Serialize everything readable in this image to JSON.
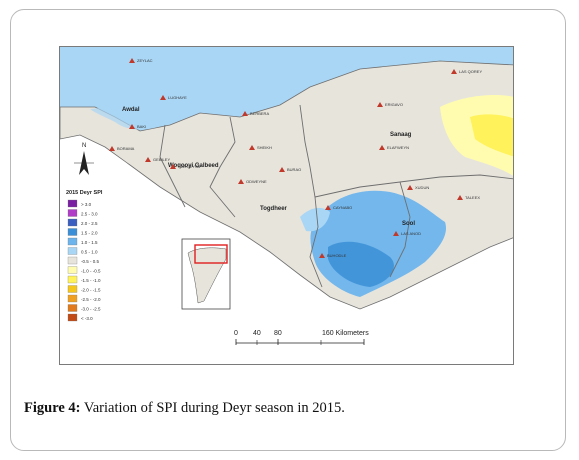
{
  "caption": {
    "figure_label": "Figure 4:",
    "text": " Variation of SPI during Deyr season in 2015."
  },
  "map": {
    "north_arrow_label": "N",
    "legend": {
      "title": "2015 Deyr SPI",
      "classes": [
        {
          "label": "> 3.0",
          "color": "#7a1fa2"
        },
        {
          "label": "2.5 - 3.0",
          "color": "#b03cc8"
        },
        {
          "label": "2.0 - 2.5",
          "color": "#3b5fc0"
        },
        {
          "label": "1.5 - 2.0",
          "color": "#3b8fd6"
        },
        {
          "label": "1.0 - 1.5",
          "color": "#6db4ec"
        },
        {
          "label": "0.5 - 1.0",
          "color": "#a9d6f5"
        },
        {
          "label": "-0.5 - 0.5",
          "color": "#e7e4dc"
        },
        {
          "label": "-1.0 - -0.5",
          "color": "#fffcb0"
        },
        {
          "label": "-1.5 - -1.0",
          "color": "#fff25a"
        },
        {
          "label": "-2.0 - -1.5",
          "color": "#f5c61c"
        },
        {
          "label": "-2.5 - -2.0",
          "color": "#f0a020"
        },
        {
          "label": "-3.0 - -2.5",
          "color": "#e07a1c"
        },
        {
          "label": "< -3.0",
          "color": "#c24a14"
        }
      ]
    },
    "regions": [
      {
        "name": "Awdal"
      },
      {
        "name": "Woqooyi Galbeed"
      },
      {
        "name": "Togdheer"
      },
      {
        "name": "Sanaag"
      },
      {
        "name": "Sool"
      }
    ],
    "towns": [
      {
        "name": "ZEYLAC"
      },
      {
        "name": "LUGHAYE"
      },
      {
        "name": "BAKI"
      },
      {
        "name": "BORAMA"
      },
      {
        "name": "BERBERA"
      },
      {
        "name": "SHEIKH"
      },
      {
        "name": "GEBILEY"
      },
      {
        "name": "HARGEYSA"
      },
      {
        "name": "ODWEYNE"
      },
      {
        "name": "BURAO"
      },
      {
        "name": "BUHODLE"
      },
      {
        "name": "LAS QOREY"
      },
      {
        "name": "ERIGAVO"
      },
      {
        "name": "ELAFWEYN"
      },
      {
        "name": "CAYNABO"
      },
      {
        "name": "XUDUN"
      },
      {
        "name": "TALEEX"
      },
      {
        "name": "LAS ANOD"
      }
    ],
    "scale_bar": {
      "ticks": [
        "0",
        "40",
        "80",
        "160 Kilometers"
      ]
    },
    "colors": {
      "land": "#e7e4dc",
      "sea": "#a9d6f5",
      "boundary": "#6e6e6e",
      "inset_highlight": "#e02020"
    }
  }
}
